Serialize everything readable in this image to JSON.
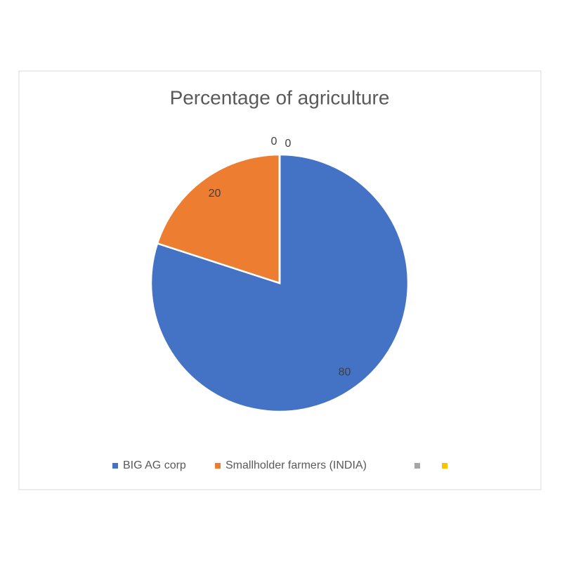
{
  "chart_data": {
    "type": "pie",
    "title": "Percentage of agriculture",
    "categories": [
      "BIG AG corp",
      "Smallholder farmers (INDIA)",
      null,
      null
    ],
    "values": [
      80,
      20,
      0,
      0
    ],
    "colors": [
      "#4472c4",
      "#ed7d31",
      "#a5a5a5",
      "#ffc000"
    ],
    "legend": "bottom"
  }
}
